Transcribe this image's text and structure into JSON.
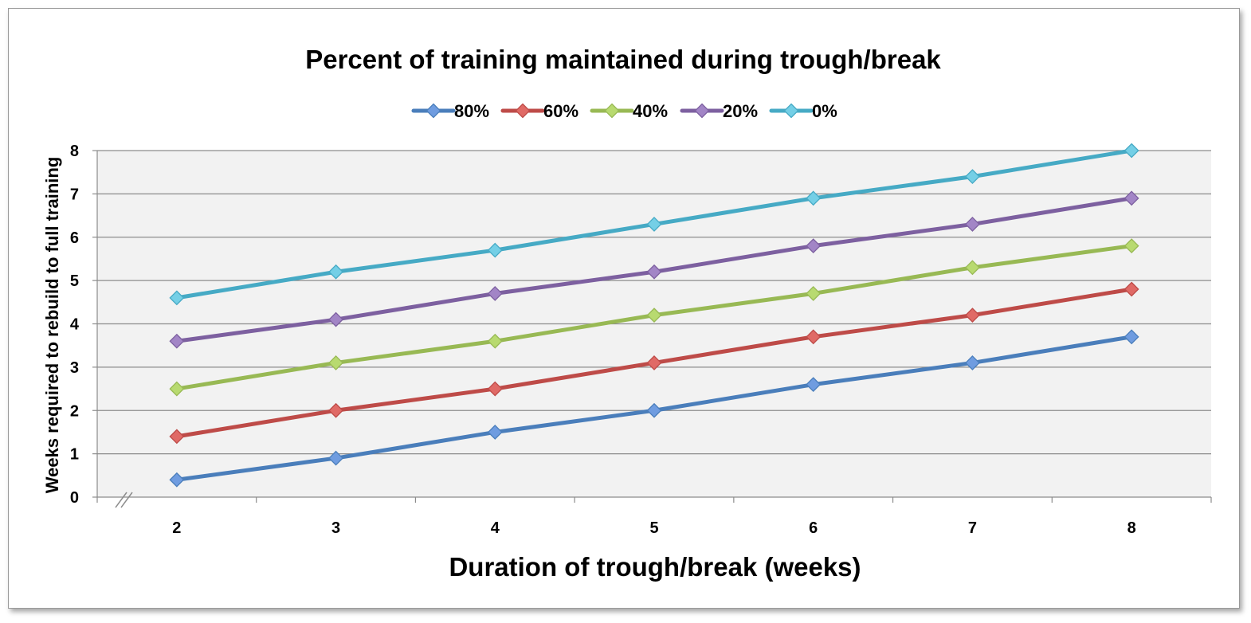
{
  "chart_data": {
    "type": "line",
    "title": "Percent of training maintained during trough/break",
    "xlabel": "Duration of trough/break (weeks)",
    "ylabel": "Weeks required to rebuild to full training",
    "x": [
      2,
      3,
      4,
      5,
      6,
      7,
      8
    ],
    "ylim": [
      0,
      8
    ],
    "yticks": [
      0,
      1,
      2,
      3,
      4,
      5,
      6,
      7,
      8
    ],
    "grid": true,
    "legend_position": "top",
    "series": [
      {
        "name": "80%",
        "color": "#4a7ebb",
        "marker_color": "#6f9ce0",
        "values": [
          0.4,
          0.9,
          1.5,
          2.0,
          2.6,
          3.1,
          3.7
        ]
      },
      {
        "name": "60%",
        "color": "#be4b48",
        "marker_color": "#e06a66",
        "values": [
          1.4,
          2.0,
          2.5,
          3.1,
          3.7,
          4.2,
          4.8
        ]
      },
      {
        "name": "40%",
        "color": "#98b954",
        "marker_color": "#b8da70",
        "values": [
          2.5,
          3.1,
          3.6,
          4.2,
          4.7,
          5.3,
          5.8
        ]
      },
      {
        "name": "20%",
        "color": "#7d60a0",
        "marker_color": "#a285c6",
        "values": [
          3.6,
          4.1,
          4.7,
          5.2,
          5.8,
          6.3,
          6.9
        ]
      },
      {
        "name": "0%",
        "color": "#46aac5",
        "marker_color": "#74cfe6",
        "values": [
          4.6,
          5.2,
          5.7,
          6.3,
          6.9,
          7.4,
          8.0
        ]
      }
    ]
  }
}
